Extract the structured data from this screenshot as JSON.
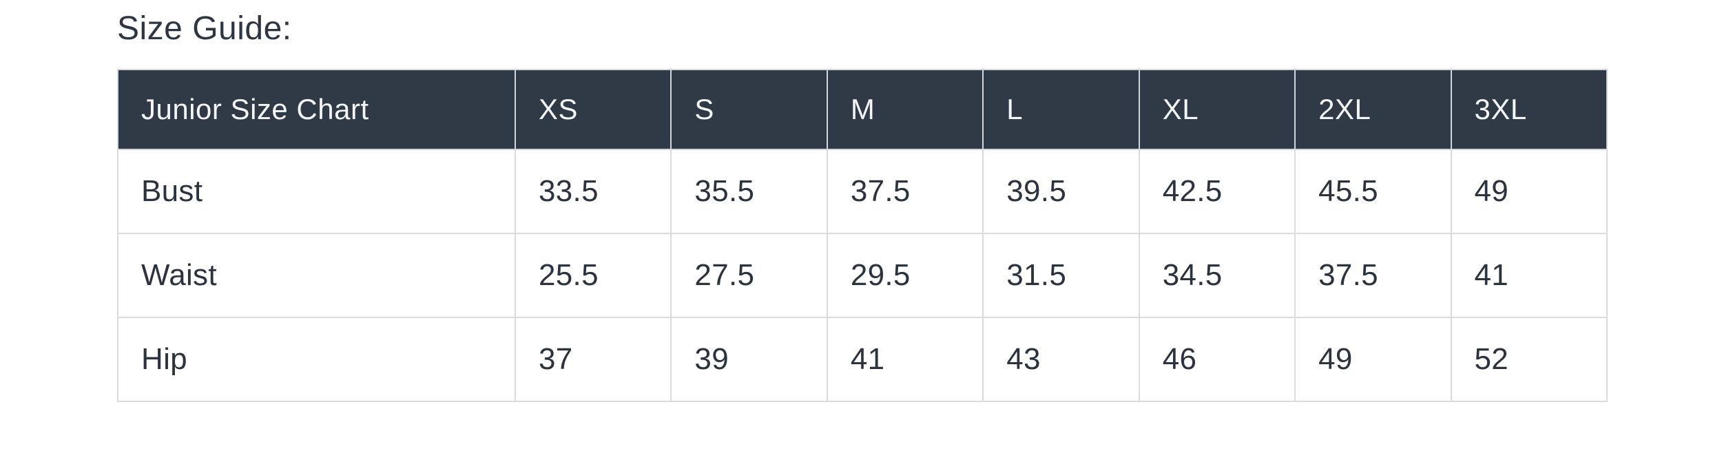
{
  "page": {
    "title": "Size Guide:"
  },
  "table": {
    "header": {
      "label": "Junior Size Chart",
      "sizes": [
        "XS",
        "S",
        "M",
        "L",
        "XL",
        "2XL",
        "3XL"
      ]
    },
    "rows": [
      {
        "label": "Bust",
        "values": [
          "33.5",
          "35.5",
          "37.5",
          "39.5",
          "42.5",
          "45.5",
          "49"
        ]
      },
      {
        "label": "Waist",
        "values": [
          "25.5",
          "27.5",
          "29.5",
          "31.5",
          "34.5",
          "37.5",
          "41"
        ]
      },
      {
        "label": "Hip",
        "values": [
          "37",
          "39",
          "41",
          "43",
          "46",
          "49",
          "52"
        ]
      }
    ]
  },
  "colors": {
    "header_bg": "#303946",
    "header_text": "#f4f5f6",
    "body_text": "#2b333e",
    "border": "#d9dcde",
    "title_text": "#2d3643",
    "page_bg": "#ffffff"
  }
}
